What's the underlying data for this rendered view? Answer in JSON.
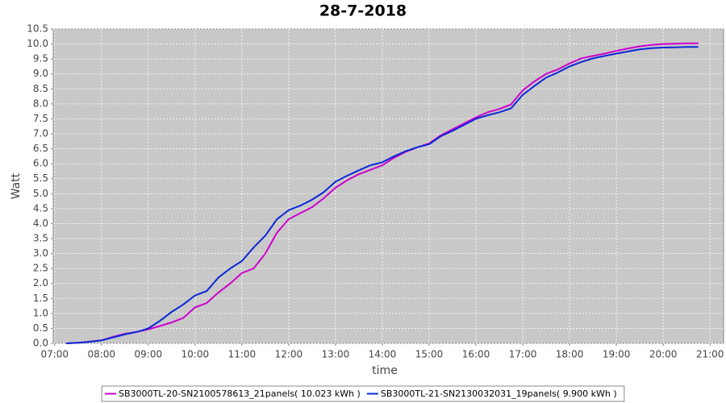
{
  "chart_data": {
    "type": "line",
    "title": "28-7-2018",
    "x_label": "time",
    "y_label": "Watt",
    "x": [
      7.25,
      7.5,
      7.75,
      8,
      8.25,
      8.5,
      8.75,
      9,
      9.25,
      9.5,
      9.75,
      10,
      10.25,
      10.5,
      10.75,
      11,
      11.25,
      11.5,
      11.75,
      12,
      12.25,
      12.5,
      12.75,
      13,
      13.25,
      13.5,
      13.75,
      14,
      14.25,
      14.5,
      14.75,
      15,
      15.25,
      15.5,
      15.75,
      16,
      16.25,
      16.5,
      16.75,
      17,
      17.25,
      17.5,
      17.75,
      18,
      18.25,
      18.5,
      18.75,
      19,
      19.25,
      19.5,
      19.75,
      20,
      20.25,
      20.5,
      20.75
    ],
    "series": [
      {
        "name": "SB3000TL-20-SN2100578613_21panels( 10.023 kWh )",
        "color": "#cc00cc",
        "values": [
          0,
          0.02,
          0.06,
          0.1,
          0.22,
          0.32,
          0.38,
          0.47,
          0.58,
          0.7,
          0.85,
          1.2,
          1.35,
          1.7,
          2.0,
          2.35,
          2.5,
          3.0,
          3.7,
          4.15,
          4.35,
          4.55,
          4.85,
          5.2,
          5.45,
          5.65,
          5.8,
          5.95,
          6.2,
          6.4,
          6.55,
          6.68,
          6.95,
          7.15,
          7.35,
          7.55,
          7.72,
          7.83,
          7.98,
          8.45,
          8.75,
          9.0,
          9.15,
          9.35,
          9.52,
          9.6,
          9.68,
          9.77,
          9.85,
          9.92,
          9.97,
          10.0,
          10.01,
          10.02,
          10.02
        ]
      },
      {
        "name": "SB3000TL-21-SN2130032031_19panels( 9.900 kWh )",
        "color": "#0a28d8",
        "values": [
          0,
          0.02,
          0.05,
          0.1,
          0.2,
          0.3,
          0.38,
          0.5,
          0.75,
          1.05,
          1.3,
          1.6,
          1.75,
          2.2,
          2.5,
          2.75,
          3.2,
          3.6,
          4.15,
          4.45,
          4.6,
          4.8,
          5.05,
          5.4,
          5.6,
          5.78,
          5.95,
          6.05,
          6.25,
          6.42,
          6.55,
          6.65,
          6.92,
          7.1,
          7.3,
          7.5,
          7.62,
          7.72,
          7.85,
          8.3,
          8.6,
          8.88,
          9.05,
          9.25,
          9.4,
          9.52,
          9.6,
          9.68,
          9.75,
          9.82,
          9.86,
          9.88,
          9.89,
          9.9,
          9.9
        ]
      }
    ],
    "xlim": [
      6.97,
      21.29
    ],
    "xticks": [
      {
        "value": 7,
        "label": "07:00"
      },
      {
        "value": 8,
        "label": "08:00"
      },
      {
        "value": 9,
        "label": "09:00"
      },
      {
        "value": 10,
        "label": "10:00"
      },
      {
        "value": 11,
        "label": "11:00"
      },
      {
        "value": 12,
        "label": "12:00"
      },
      {
        "value": 13,
        "label": "13:00"
      },
      {
        "value": 14,
        "label": "14:00"
      },
      {
        "value": 15,
        "label": "15:00"
      },
      {
        "value": 16,
        "label": "16:00"
      },
      {
        "value": 17,
        "label": "17:00"
      },
      {
        "value": 18,
        "label": "18:00"
      },
      {
        "value": 19,
        "label": "19:00"
      },
      {
        "value": 20,
        "label": "20:00"
      },
      {
        "value": 21,
        "label": "21:00"
      }
    ],
    "ylim": [
      0,
      10.5
    ],
    "yticks": [
      {
        "value": 0,
        "label": "0.0"
      },
      0.5,
      {
        "value": 1,
        "label": "1.0"
      },
      1.5,
      {
        "value": 2,
        "label": "2.0"
      },
      2.5,
      {
        "value": 3,
        "label": "3.0"
      },
      3.5,
      {
        "value": 4,
        "label": "4.0"
      },
      4.5,
      {
        "value": 5,
        "label": "5.0"
      },
      5.5,
      {
        "value": 6,
        "label": "6.0"
      },
      6.5,
      {
        "value": 7,
        "label": "7.0"
      },
      7.5,
      {
        "value": 8,
        "label": "8.0"
      },
      8.5,
      {
        "value": 9,
        "label": "9.0"
      },
      9.5,
      {
        "value": 10,
        "label": "10.0"
      },
      10.5
    ],
    "grid": true,
    "legend": "bottom"
  }
}
